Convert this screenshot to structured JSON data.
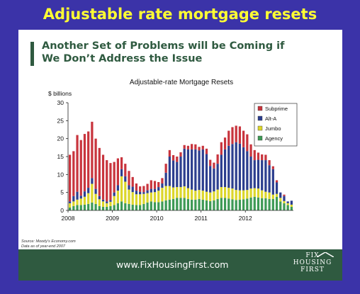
{
  "page": {
    "title": "Adjustable rate mortgage resets"
  },
  "slide": {
    "headline_line1": "Another Set of Problems will be Coming if",
    "headline_line2": "We Don’t Address the Issue",
    "source_line1": "Source: Moody's Economy.com",
    "source_line2": "Data as of year-end 2007",
    "footer_url": "www.FixHousingFirst.com",
    "logo_line1": "FIX",
    "logo_line2": "HOUSING",
    "logo_line3": "FIRST"
  },
  "chart_data": {
    "type": "bar",
    "stacked": true,
    "title": "Adjustable-rate Mortgage Resets",
    "ylabel": "$ billions",
    "ylim": [
      0,
      30
    ],
    "yticks": [
      0,
      5,
      10,
      15,
      20,
      25,
      30
    ],
    "x_tick_labels": [
      "2008",
      "2009",
      "2010",
      "2011",
      "2012"
    ],
    "months_per_year": 12,
    "legend": {
      "position": "top-right",
      "entries": [
        "Subprime",
        "Alt-A",
        "Jumbo",
        "Agency"
      ]
    },
    "colors": {
      "Subprime": "#c8343d",
      "Alt-A": "#2c3e8e",
      "Jumbo": "#dcd62a",
      "Agency": "#3e9a55"
    },
    "series": [
      {
        "name": "Agency",
        "values": [
          0.8,
          1.2,
          1.5,
          1.5,
          1.6,
          1.8,
          2.2,
          1.8,
          1.2,
          1.0,
          1.0,
          1.2,
          1.5,
          2,
          2.5,
          2,
          1.8,
          1.6,
          1.5,
          1.5,
          1.8,
          2.2,
          2.5,
          2.3,
          2.3,
          2.5,
          2.8,
          3,
          3.2,
          3.5,
          3.5,
          3.5,
          3.2,
          3,
          3,
          3.2,
          3,
          2.8,
          2.6,
          2.8,
          3.2,
          3.5,
          3.5,
          3.3,
          3.1,
          2.9,
          3,
          3.1,
          3.3,
          3.6,
          3.8,
          3.6,
          3.4,
          3.4,
          3.2,
          3.2,
          3.8,
          2.5,
          2.0,
          1.5,
          1.0
        ]
      },
      {
        "name": "Jumbo",
        "values": [
          1.2,
          1.3,
          1.5,
          1.8,
          2.2,
          3,
          5.2,
          2.8,
          1.9,
          1.5,
          1.0,
          1.2,
          2.5,
          3.5,
          7,
          6,
          4,
          3.5,
          3,
          3,
          2.8,
          2.6,
          2.5,
          2.8,
          3.2,
          3.8,
          4,
          3.8,
          3.2,
          3,
          3,
          3.2,
          3,
          2.8,
          2.5,
          2.5,
          2.5,
          2.4,
          2.4,
          2.5,
          2.6,
          3,
          3,
          3,
          3,
          2.8,
          2.6,
          2.5,
          2.4,
          2.5,
          2.4,
          2.5,
          2.2,
          1.8,
          1.8,
          1.2,
          0.8,
          1,
          0.6,
          0.5,
          0.6
        ]
      },
      {
        "name": "Alt-A",
        "values": [
          0.5,
          1.5,
          2.2,
          0.8,
          1.5,
          1.5,
          1.6,
          1.4,
          0.9,
          0.5,
          0.5,
          0.5,
          1.0,
          1.5,
          2.0,
          1.5,
          1.2,
          1.5,
          1.0,
          0.7,
          0.5,
          0.8,
          1.0,
          0.9,
          1.0,
          1.2,
          3.7,
          8.2,
          7.5,
          7,
          8.5,
          10.5,
          10.8,
          11.2,
          11.5,
          11,
          11.5,
          10.5,
          7.4,
          6.4,
          7.2,
          9,
          10.5,
          11.7,
          12.4,
          13.3,
          13,
          12,
          10.8,
          8.9,
          7.8,
          8,
          8.4,
          8.8,
          7.6,
          7.1,
          3.2,
          1.5,
          1.4,
          0.5,
          1.1
        ]
      },
      {
        "name": "Subprime",
        "values": [
          13,
          12.5,
          15.8,
          15.5,
          16,
          15.7,
          15.7,
          14,
          13.4,
          12.5,
          11.5,
          10.3,
          8.5,
          7.5,
          3.3,
          3.5,
          4,
          2.7,
          2,
          1.5,
          1.7,
          1.8,
          2.4,
          2.2,
          1.4,
          1.5,
          2.5,
          1.8,
          1.5,
          1.5,
          1.2,
          1,
          1,
          1.5,
          1.4,
          1,
          1,
          1.5,
          1.7,
          1.6,
          2.6,
          3.5,
          3.3,
          4.2,
          4.7,
          4.6,
          4.8,
          4.6,
          4.7,
          3.4,
          2.8,
          2,
          1.6,
          1.5,
          1.4,
          0.8,
          0.6,
          0,
          0.4,
          0,
          0
        ]
      }
    ]
  }
}
